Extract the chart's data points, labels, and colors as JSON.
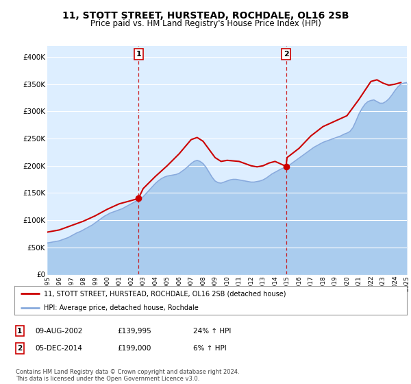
{
  "title": "11, STOTT STREET, HURSTEAD, ROCHDALE, OL16 2SB",
  "subtitle": "Price paid vs. HM Land Registry's House Price Index (HPI)",
  "legend_line1": "11, STOTT STREET, HURSTEAD, ROCHDALE, OL16 2SB (detached house)",
  "legend_line2": "HPI: Average price, detached house, Rochdale",
  "annotation1_date": "09-AUG-2002",
  "annotation1_price": "£139,995",
  "annotation1_hpi": "24% ↑ HPI",
  "annotation2_date": "05-DEC-2014",
  "annotation2_price": "£199,000",
  "annotation2_hpi": "6% ↑ HPI",
  "footnote": "Contains HM Land Registry data © Crown copyright and database right 2024.\nThis data is licensed under the Open Government Licence v3.0.",
  "background_color": "#ddeeff",
  "house_color": "#cc0000",
  "hpi_color": "#88aadd",
  "hpi_fill_color": "#aaccee",
  "ylim": [
    0,
    420000
  ],
  "yticks": [
    0,
    50000,
    100000,
    150000,
    200000,
    250000,
    300000,
    350000,
    400000
  ],
  "ytick_labels": [
    "£0",
    "£50K",
    "£100K",
    "£150K",
    "£200K",
    "£250K",
    "£300K",
    "£350K",
    "£400K"
  ],
  "x_start_year": 1995,
  "x_end_year": 2025,
  "transaction1_year": 2002.61,
  "transaction1_value": 139995,
  "transaction2_year": 2014.92,
  "transaction2_value": 199000,
  "hpi_years": [
    1995.0,
    1995.25,
    1995.5,
    1995.75,
    1996.0,
    1996.25,
    1996.5,
    1996.75,
    1997.0,
    1997.25,
    1997.5,
    1997.75,
    1998.0,
    1998.25,
    1998.5,
    1998.75,
    1999.0,
    1999.25,
    1999.5,
    1999.75,
    2000.0,
    2000.25,
    2000.5,
    2000.75,
    2001.0,
    2001.25,
    2001.5,
    2001.75,
    2002.0,
    2002.25,
    2002.5,
    2002.75,
    2003.0,
    2003.25,
    2003.5,
    2003.75,
    2004.0,
    2004.25,
    2004.5,
    2004.75,
    2005.0,
    2005.25,
    2005.5,
    2005.75,
    2006.0,
    2006.25,
    2006.5,
    2006.75,
    2007.0,
    2007.25,
    2007.5,
    2007.75,
    2008.0,
    2008.25,
    2008.5,
    2008.75,
    2009.0,
    2009.25,
    2009.5,
    2009.75,
    2010.0,
    2010.25,
    2010.5,
    2010.75,
    2011.0,
    2011.25,
    2011.5,
    2011.75,
    2012.0,
    2012.25,
    2012.5,
    2012.75,
    2013.0,
    2013.25,
    2013.5,
    2013.75,
    2014.0,
    2014.25,
    2014.5,
    2014.75,
    2015.0,
    2015.25,
    2015.5,
    2015.75,
    2016.0,
    2016.25,
    2016.5,
    2016.75,
    2017.0,
    2017.25,
    2017.5,
    2017.75,
    2018.0,
    2018.25,
    2018.5,
    2018.75,
    2019.0,
    2019.25,
    2019.5,
    2019.75,
    2020.0,
    2020.25,
    2020.5,
    2020.75,
    2021.0,
    2021.25,
    2021.5,
    2021.75,
    2022.0,
    2022.25,
    2022.5,
    2022.75,
    2023.0,
    2023.25,
    2023.5,
    2023.75,
    2024.0,
    2024.25,
    2024.5,
    2024.75,
    2025.0
  ],
  "hpi_values": [
    58000,
    59000,
    60000,
    61000,
    62000,
    64000,
    66000,
    68000,
    71000,
    74000,
    77000,
    79000,
    82000,
    85000,
    88000,
    91000,
    95000,
    99000,
    103000,
    107000,
    110000,
    113000,
    115000,
    117000,
    119000,
    121000,
    124000,
    127000,
    130000,
    133000,
    136000,
    139000,
    143000,
    149000,
    155000,
    161000,
    167000,
    172000,
    176000,
    179000,
    181000,
    182000,
    183000,
    184000,
    186000,
    190000,
    194000,
    199000,
    204000,
    208000,
    210000,
    208000,
    204000,
    197000,
    188000,
    179000,
    172000,
    169000,
    168000,
    170000,
    172000,
    174000,
    175000,
    175000,
    174000,
    173000,
    172000,
    171000,
    170000,
    170000,
    171000,
    172000,
    174000,
    177000,
    181000,
    185000,
    188000,
    191000,
    194000,
    196000,
    198000,
    202000,
    206000,
    210000,
    214000,
    218000,
    222000,
    226000,
    230000,
    234000,
    237000,
    240000,
    243000,
    245000,
    247000,
    249000,
    251000,
    253000,
    255000,
    258000,
    260000,
    263000,
    270000,
    282000,
    295000,
    305000,
    313000,
    318000,
    320000,
    321000,
    318000,
    315000,
    315000,
    318000,
    323000,
    330000,
    338000,
    345000,
    350000,
    352000,
    353000
  ],
  "house_years": [
    1995.0,
    1996.0,
    1997.0,
    1998.0,
    1999.0,
    2000.0,
    2001.0,
    2001.5,
    2002.0,
    2002.61,
    2003.0,
    2004.0,
    2005.0,
    2006.0,
    2007.0,
    2007.5,
    2008.0,
    2009.0,
    2009.5,
    2010.0,
    2011.0,
    2012.0,
    2012.5,
    2013.0,
    2013.5,
    2014.0,
    2014.92,
    2015.0,
    2016.0,
    2017.0,
    2018.0,
    2019.0,
    2020.0,
    2021.0,
    2022.0,
    2022.5,
    2023.0,
    2023.5,
    2024.0,
    2024.5
  ],
  "house_values": [
    78000,
    82000,
    90000,
    98000,
    108000,
    120000,
    130000,
    133000,
    136000,
    139995,
    158000,
    180000,
    200000,
    222000,
    248000,
    252000,
    245000,
    215000,
    208000,
    210000,
    208000,
    200000,
    198000,
    200000,
    205000,
    208000,
    199000,
    215000,
    232000,
    255000,
    272000,
    282000,
    292000,
    322000,
    355000,
    358000,
    352000,
    348000,
    350000,
    353000
  ]
}
